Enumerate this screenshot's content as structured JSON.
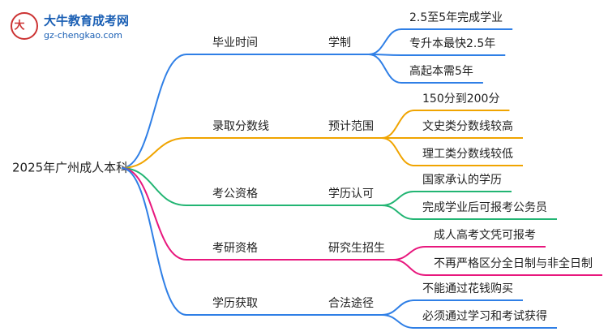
{
  "logo": {
    "name": "大牛教育成考网",
    "url": "gz-chengkao.com"
  },
  "root": "2025年广州成人本科",
  "branches": [
    {
      "label": "毕业时间",
      "sub": "学制",
      "color": "#2f7fe6",
      "leaves": [
        "2.5至5年完成学业",
        "专升本最快2.5年",
        "高起本需5年"
      ]
    },
    {
      "label": "录取分数线",
      "sub": "预计范围",
      "color": "#f0a400",
      "leaves": [
        "150分到200分",
        "文史类分数线较高",
        "理工类分数线较低"
      ]
    },
    {
      "label": "考公资格",
      "sub": "学历认可",
      "color": "#22b573",
      "leaves": [
        "国家承认的学历",
        "完成学业后可报考公务员"
      ]
    },
    {
      "label": "考研资格",
      "sub": "研究生招生",
      "color": "#e8177d",
      "leaves": [
        "成人高考文凭可报考",
        "不再严格区分全日制与非全日制"
      ]
    },
    {
      "label": "学历获取",
      "sub": "合法途径",
      "color": "#2f7fe6",
      "leaves": [
        "不能通过花钱购买",
        "必须通过学习和考试获得"
      ]
    }
  ]
}
